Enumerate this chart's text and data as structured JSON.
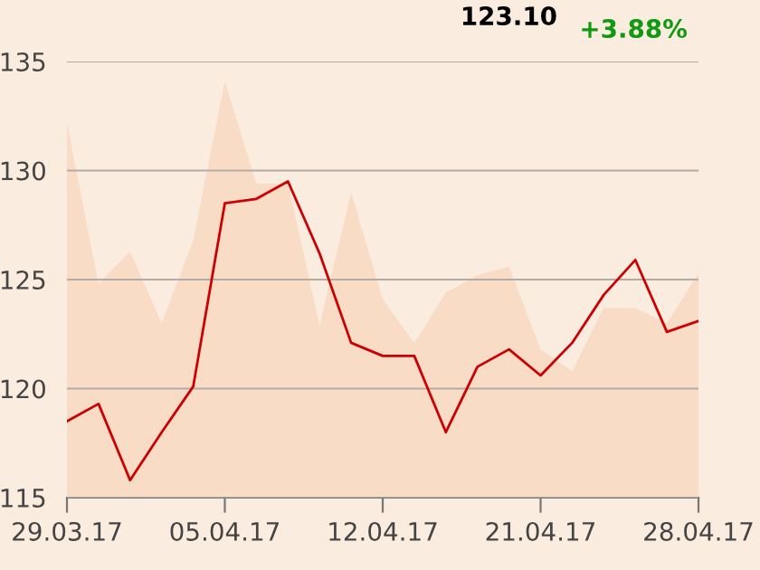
{
  "chart_data": {
    "type": "line",
    "categories": [
      "29.03.17",
      null,
      null,
      null,
      null,
      "05.04.17",
      null,
      null,
      null,
      null,
      "12.04.17",
      null,
      null,
      null,
      null,
      "21.04.17",
      null,
      null,
      null,
      null,
      "28.04.17"
    ],
    "series": [
      {
        "type": "area",
        "color": "#f8dcc6",
        "values": [
          132.2,
          124.8,
          126.3,
          123.0,
          126.8,
          134.1,
          129.4,
          129.4,
          122.9,
          129.0,
          124.1,
          122.1,
          124.4,
          125.2,
          125.6,
          121.8,
          120.8,
          123.7,
          123.7,
          123.0,
          125.3
        ]
      },
      {
        "color": "#cc0000",
        "values": [
          118.5,
          119.3,
          115.8,
          118.0,
          120.1,
          128.5,
          128.7,
          129.5,
          126.2,
          122.1,
          121.5,
          121.5,
          118.0,
          121.0,
          121.8,
          120.6,
          122.1,
          124.3,
          125.9,
          122.6,
          123.1
        ]
      }
    ],
    "ylim": [
      115,
      135
    ],
    "yticks": [
      115,
      120,
      125,
      130,
      135
    ],
    "grid": "y",
    "marker": "none",
    "line_style": "solid",
    "annotations": [
      "123.10",
      "+3.88%"
    ]
  }
}
